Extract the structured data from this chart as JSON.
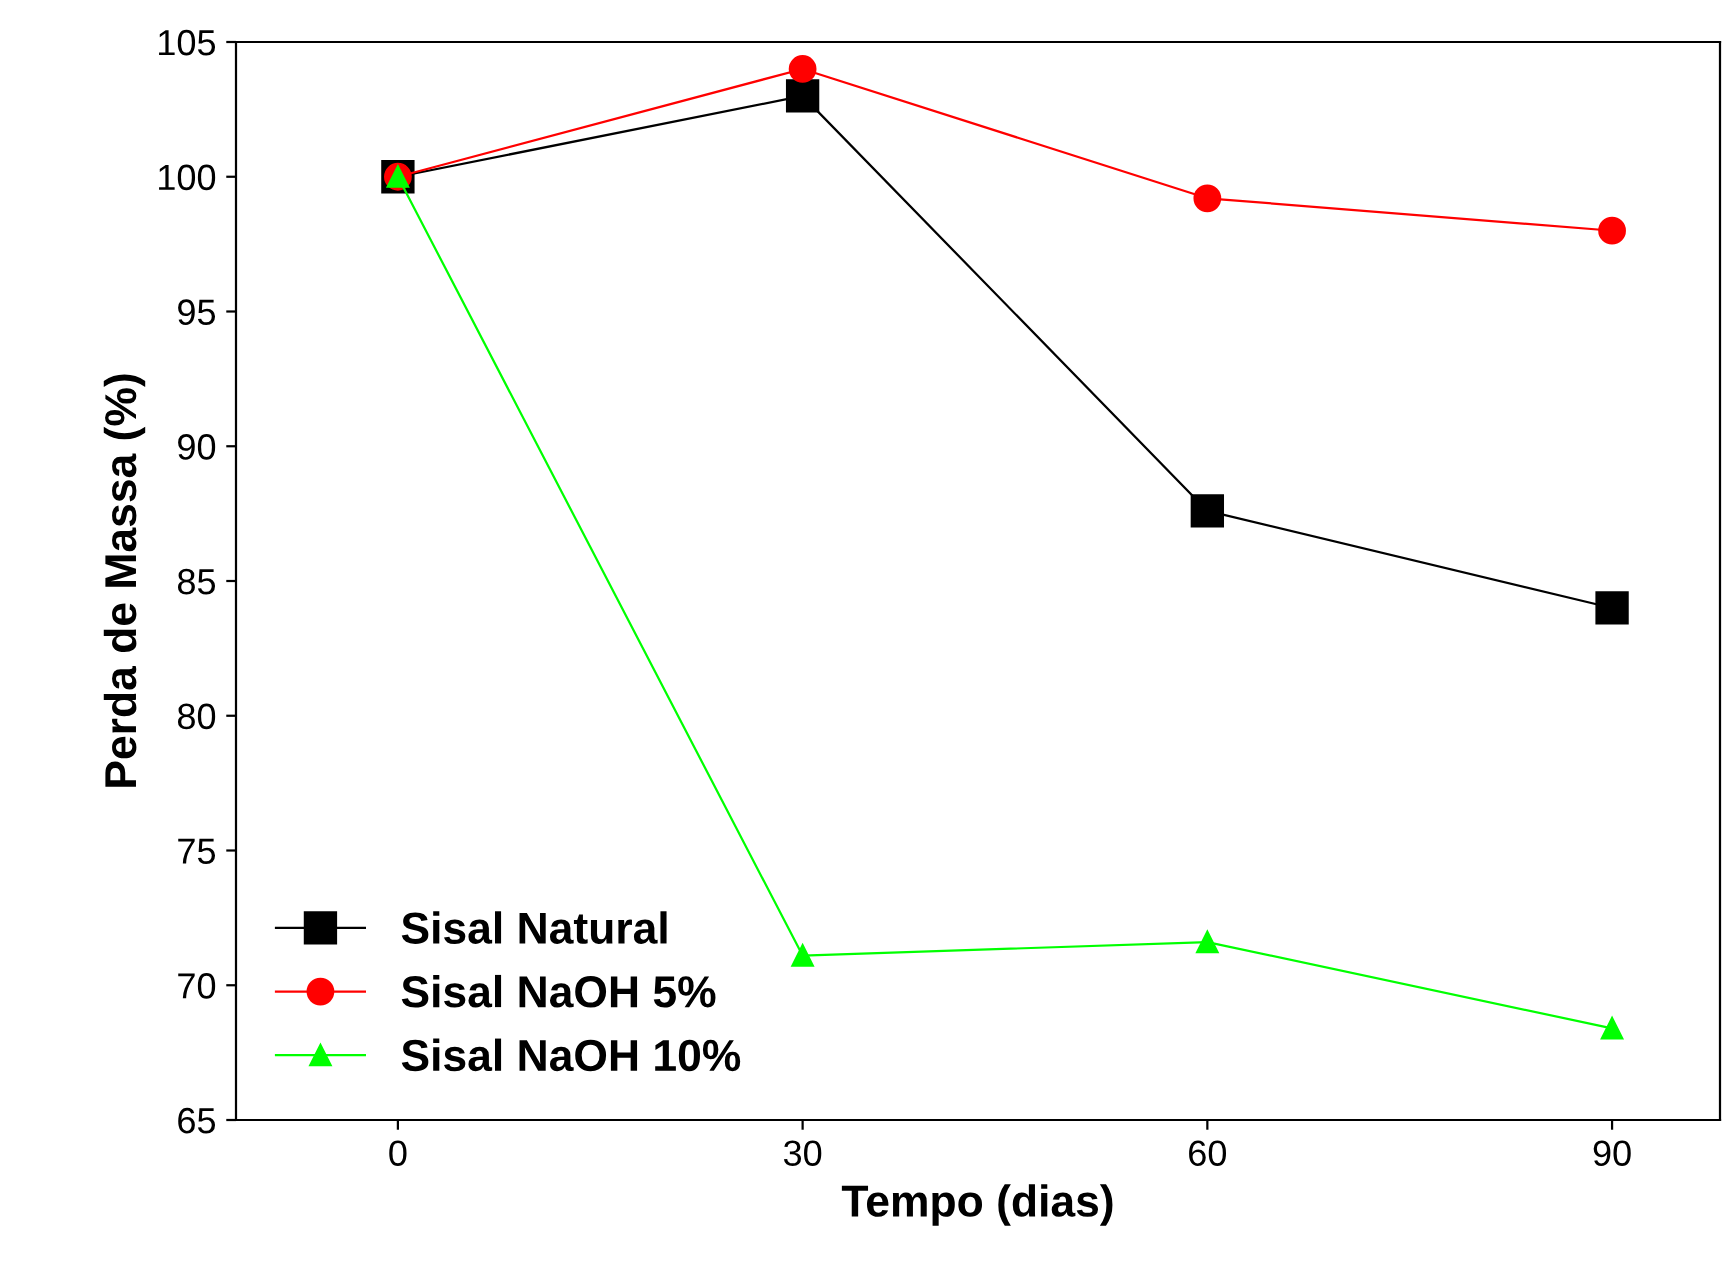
{
  "chart_data": {
    "type": "line",
    "xlabel": "Tempo (dias)",
    "ylabel": "Perda de Massa (%)",
    "x": [
      0,
      30,
      60,
      90
    ],
    "series": [
      {
        "name": "Sisal Natural",
        "color": "#000000",
        "marker": "square",
        "values": [
          100,
          103,
          87.6,
          84.0
        ]
      },
      {
        "name": "Sisal NaOH 5%",
        "color": "#ff0000",
        "marker": "circle",
        "values": [
          100,
          104,
          99.2,
          98.0
        ]
      },
      {
        "name": "Sisal NaOH 10%",
        "color": "#00ff00",
        "marker": "triangle",
        "values": [
          100,
          71.1,
          71.6,
          68.4
        ]
      }
    ],
    "xlim": [
      -12,
      98
    ],
    "xticks": [
      0,
      30,
      60,
      90
    ],
    "ylim": [
      65,
      105
    ],
    "yticks": [
      65,
      70,
      75,
      80,
      85,
      90,
      95,
      100,
      105
    ],
    "grid": false,
    "legend": "bottom left",
    "line_style": "solid"
  }
}
